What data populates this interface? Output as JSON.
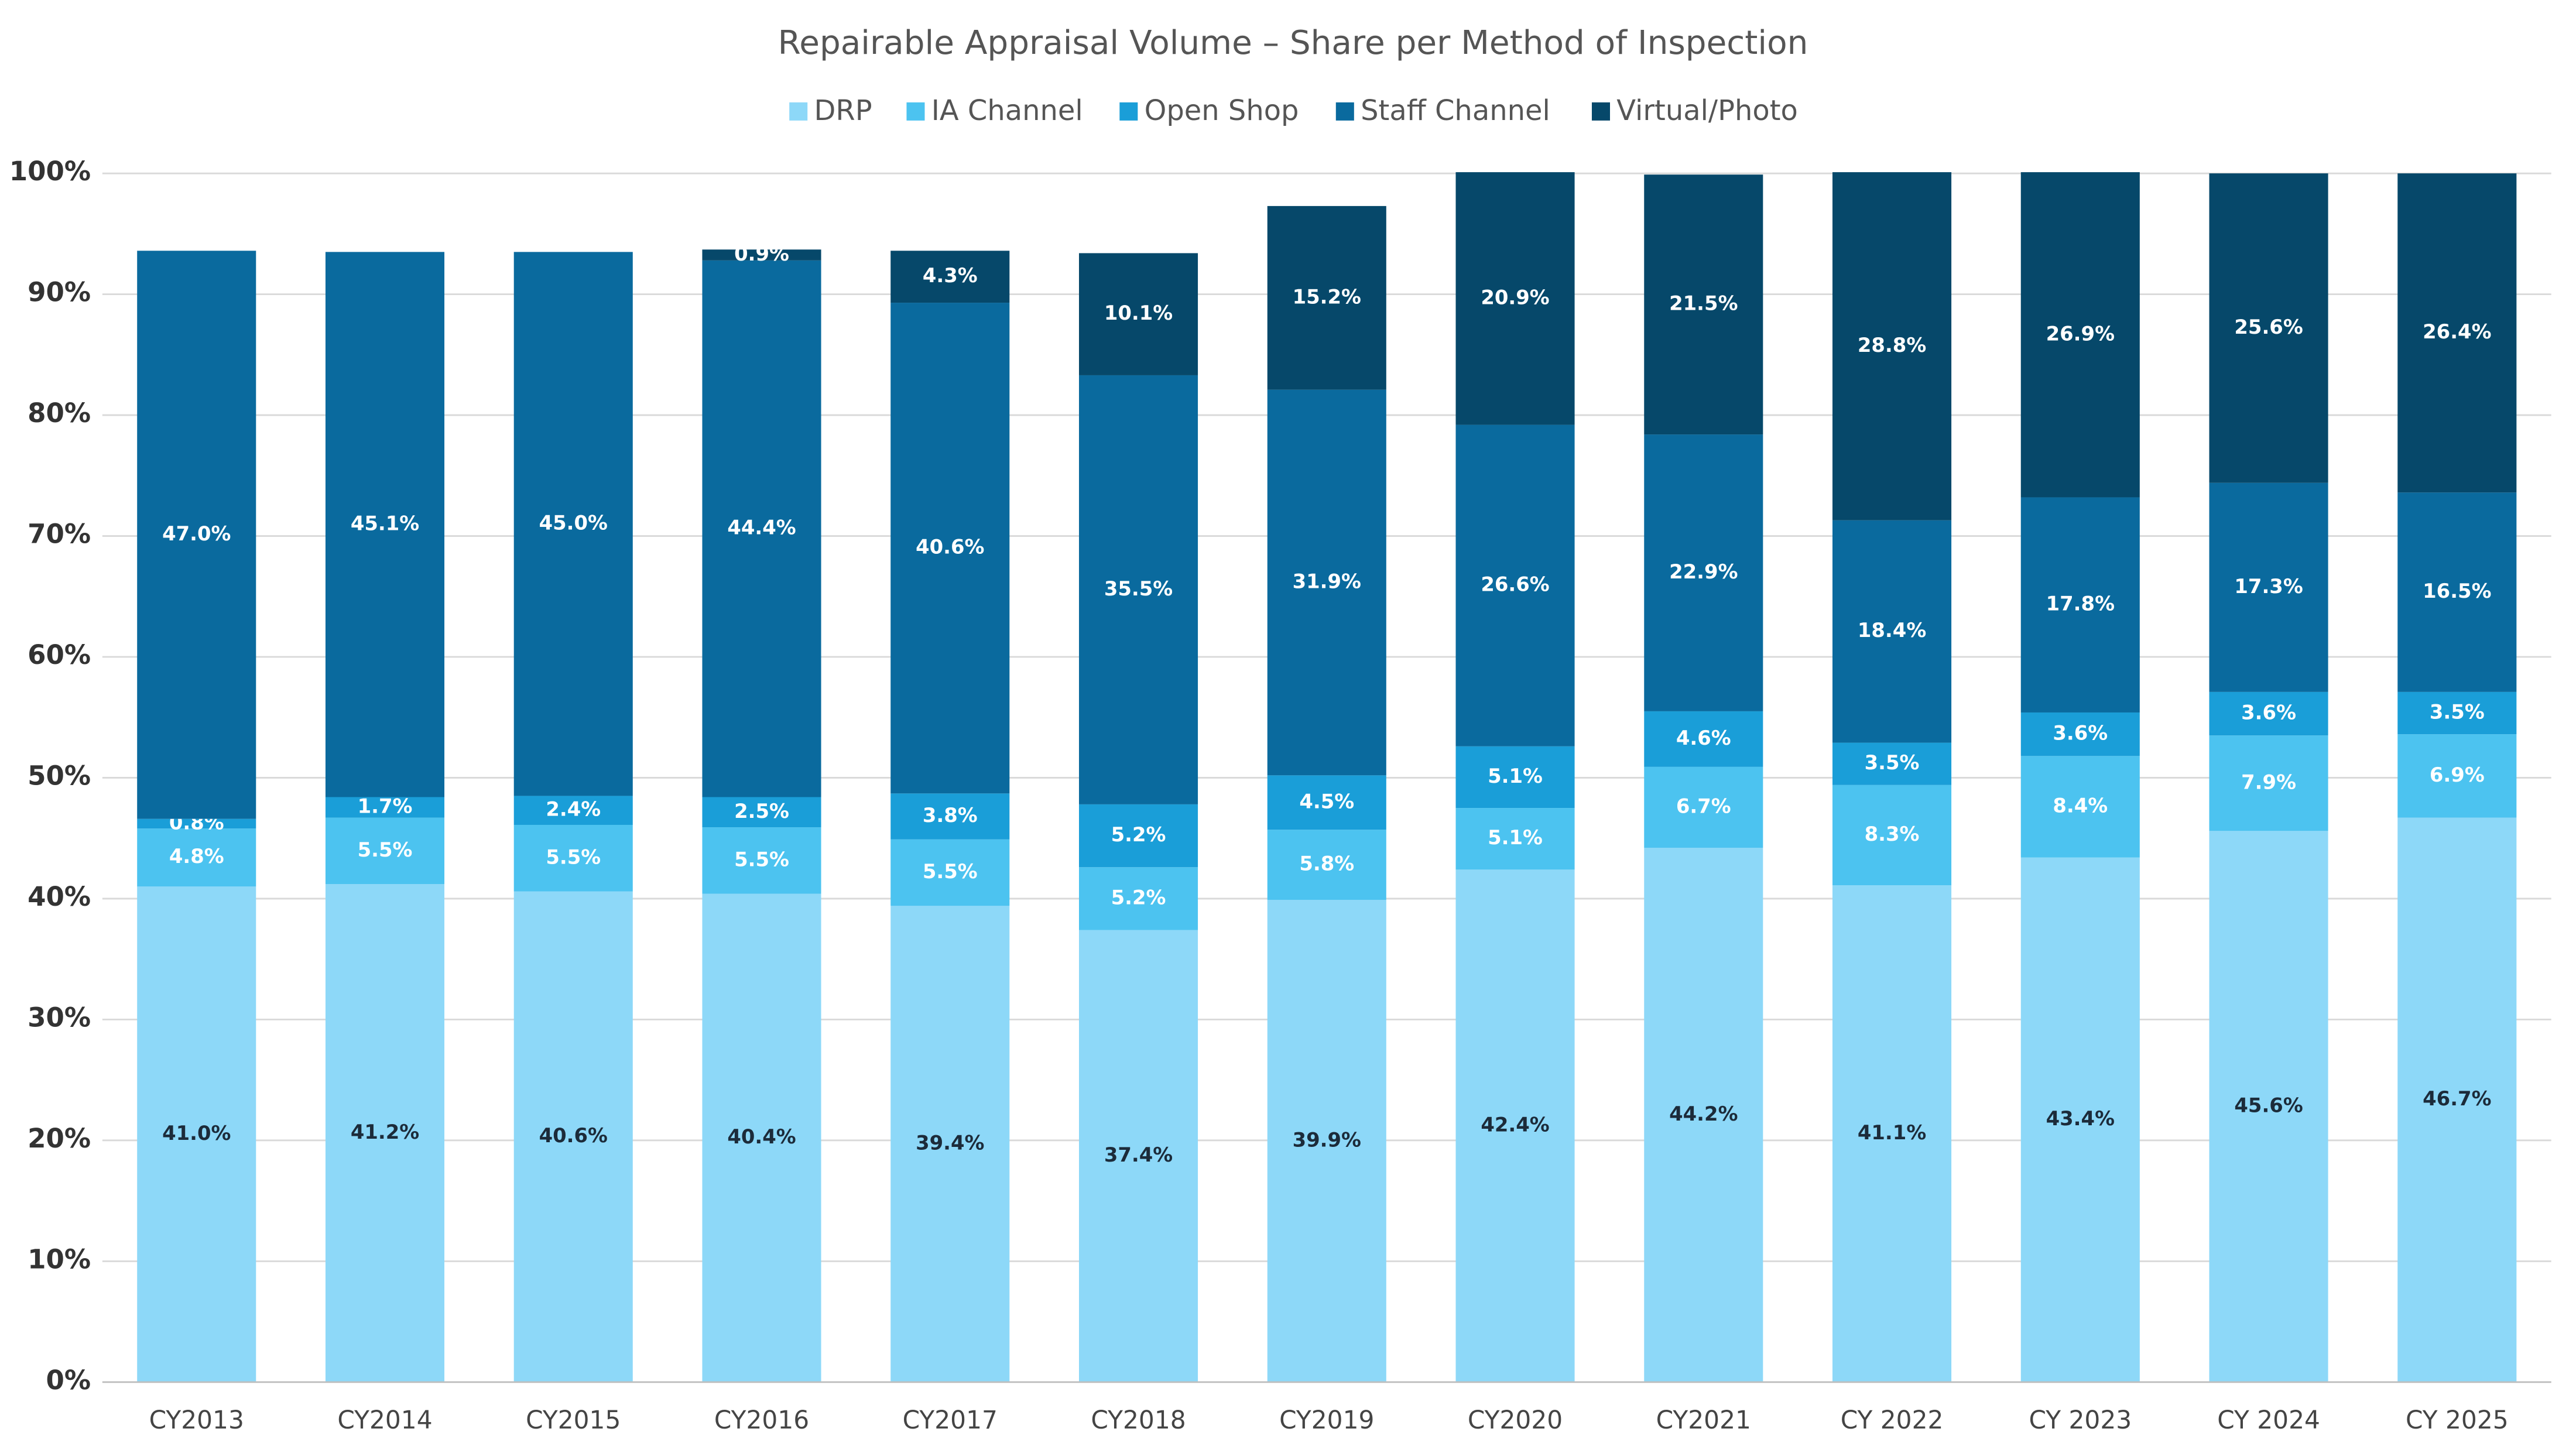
{
  "chart_data": {
    "type": "stacked_bar",
    "title": "Repairable Appraisal Volume – Share per Method of Inspection",
    "categories": [
      "CY2013",
      "CY2014",
      "CY2015",
      "CY2016",
      "CY2017",
      "CY2018",
      "CY2019",
      "CY2020",
      "CY2021",
      "CY 2022",
      "CY 2023",
      "CY 2024",
      "CY 2025"
    ],
    "series": [
      {
        "name": "DRP",
        "color": "#8dd8f8",
        "label_color": "#1c2b3a",
        "values": [
          41.0,
          41.2,
          40.6,
          40.4,
          39.4,
          37.4,
          39.9,
          42.4,
          44.2,
          41.1,
          43.4,
          45.6,
          46.7
        ],
        "value_labels": [
          "41.0%",
          "41.2%",
          "40.6%",
          "40.4%",
          "39.4%",
          "37.4%",
          "39.9%",
          "42.4%",
          "44.2%",
          "41.1%",
          "43.4%",
          "45.6%",
          "46.7%"
        ]
      },
      {
        "name": "IA Channel",
        "color": "#4cc3f0",
        "label_color": "#ffffff",
        "values": [
          4.8,
          5.5,
          5.5,
          5.5,
          5.5,
          5.2,
          5.8,
          5.1,
          6.7,
          8.3,
          8.4,
          7.9,
          6.9
        ],
        "value_labels": [
          "4.8%",
          "5.5%",
          "5.5%",
          "5.5%",
          "5.5%",
          "5.2%",
          "5.8%",
          "5.1%",
          "6.7%",
          "8.3%",
          "8.4%",
          "7.9%",
          "6.9%"
        ]
      },
      {
        "name": "Open Shop",
        "color": "#1a9ed8",
        "label_color": "#ffffff",
        "values": [
          0.8,
          1.7,
          2.4,
          2.5,
          3.8,
          5.2,
          4.5,
          5.1,
          4.6,
          3.5,
          3.6,
          3.6,
          3.5
        ],
        "value_labels": [
          "0.8%",
          "1.7%",
          "2.4%",
          "2.5%",
          "3.8%",
          "5.2%",
          "4.5%",
          "5.1%",
          "4.6%",
          "3.5%",
          "3.6%",
          "3.6%",
          "3.5%"
        ]
      },
      {
        "name": "Staff Channel",
        "color": "#0a6a9e",
        "label_color": "#ffffff",
        "values": [
          47.0,
          45.1,
          45.0,
          44.4,
          40.6,
          35.5,
          31.9,
          26.6,
          22.9,
          18.4,
          17.8,
          17.3,
          16.5
        ],
        "value_labels": [
          "47.0%",
          "45.1%",
          "45.0%",
          "44.4%",
          "40.6%",
          "35.5%",
          "31.9%",
          "26.6%",
          "22.9%",
          "18.4%",
          "17.8%",
          "17.3%",
          "16.5%"
        ]
      },
      {
        "name": "Virtual/Photo",
        "color": "#06486a",
        "label_color": "#ffffff",
        "values": [
          null,
          null,
          null,
          0.9,
          4.3,
          10.1,
          15.2,
          20.9,
          21.5,
          28.8,
          26.9,
          25.6,
          26.4
        ],
        "value_labels": [
          null,
          null,
          null,
          "0.9%",
          "4.3%",
          "10.1%",
          "15.2%",
          "20.9%",
          "21.5%",
          "28.8%",
          "26.9%",
          "25.6%",
          "26.4%"
        ]
      }
    ],
    "ylim": [
      0,
      100
    ],
    "yticks": [
      {
        "value": 0,
        "label": "0%"
      },
      {
        "value": 10,
        "label": "10%"
      },
      {
        "value": 20,
        "label": "20%"
      },
      {
        "value": 30,
        "label": "30%"
      },
      {
        "value": 40,
        "label": "40%"
      },
      {
        "value": 50,
        "label": "50%"
      },
      {
        "value": 60,
        "label": "60%"
      },
      {
        "value": 70,
        "label": "70%"
      },
      {
        "value": 80,
        "label": "80%"
      },
      {
        "value": 90,
        "label": "90%"
      },
      {
        "value": 100,
        "label": "100%"
      }
    ],
    "grid": true,
    "legend": "top"
  }
}
